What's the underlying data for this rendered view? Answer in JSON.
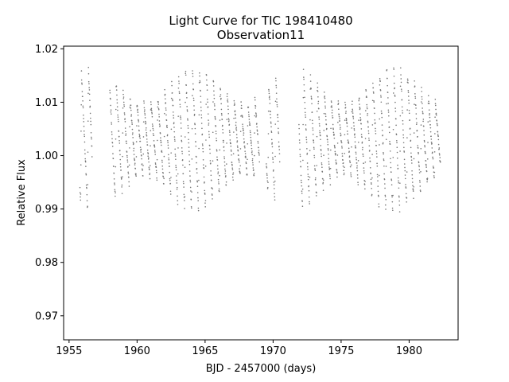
{
  "chart_data": {
    "type": "scatter",
    "title": "Light Curve for TIC 198410480",
    "subtitle": "Observation11",
    "xlabel": "BJD - 2457000 (days)",
    "ylabel": "Relative Flux",
    "xlim": [
      1954.6,
      1983.6
    ],
    "ylim": [
      0.9655,
      1.0205
    ],
    "xticks": [
      1955,
      1960,
      1965,
      1970,
      1975,
      1980
    ],
    "yticks": [
      0.97,
      0.98,
      0.99,
      1.0,
      1.01,
      1.02
    ],
    "ytick_labels": [
      "0.97",
      "0.98",
      "0.99",
      "1.00",
      "1.01",
      "1.02"
    ],
    "marker_color": "#777777",
    "grid": false,
    "legend": "none",
    "segments": [
      [
        1955.8,
        1956.7
      ],
      [
        1958.0,
        1969.0
      ],
      [
        1969.5,
        1970.5
      ],
      [
        1971.9,
        1982.3
      ]
    ],
    "pulsation_period_days": 0.51,
    "mean_flux": 1.0,
    "amplitude_range": [
      0.008,
      0.016
    ]
  }
}
